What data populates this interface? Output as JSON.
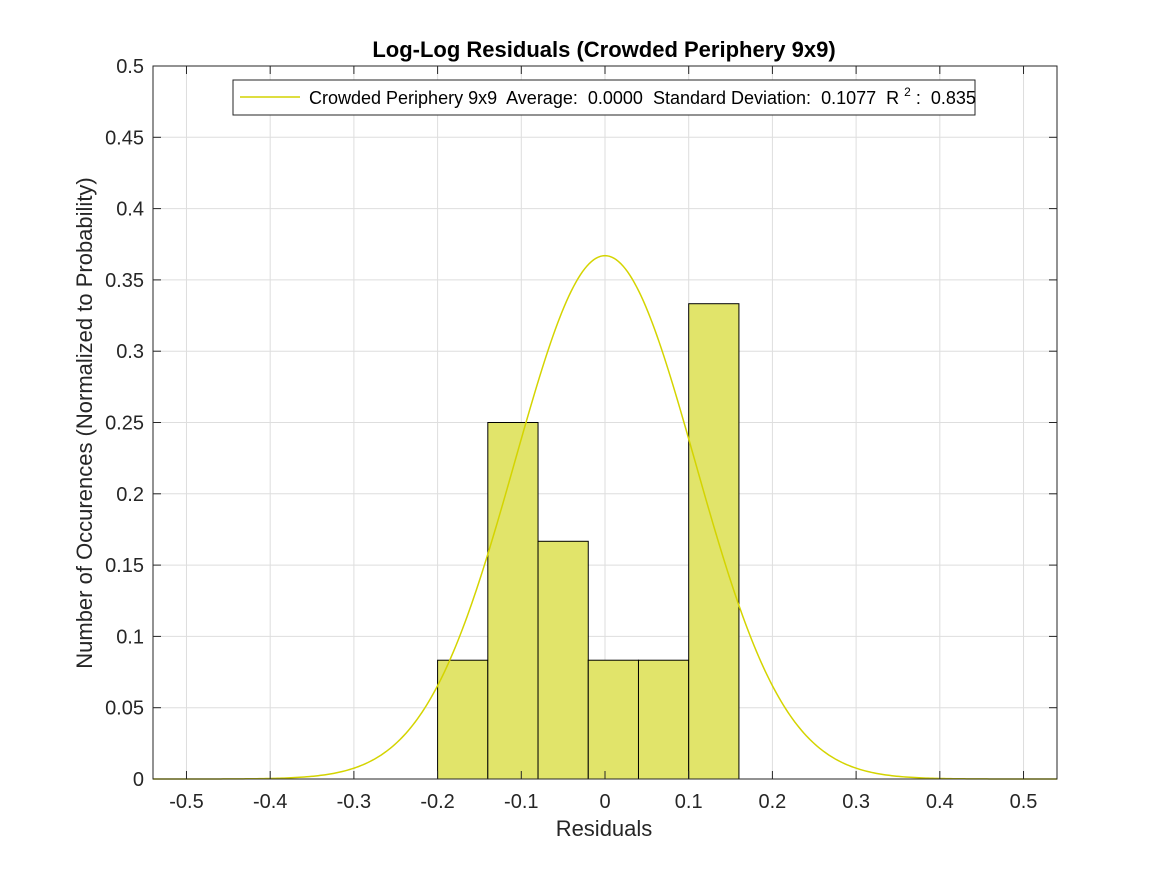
{
  "chart_data": {
    "type": "bar",
    "title": "Log-Log Residuals (Crowded Periphery 9x9)",
    "xlabel": "Residuals",
    "ylabel": "Number of Occurences (Normalized to Probability)",
    "xlim": [
      -0.54,
      0.54
    ],
    "ylim": [
      0,
      0.5
    ],
    "grid": true,
    "xticks": [
      -0.5,
      -0.4,
      -0.3,
      -0.2,
      -0.1,
      0,
      0.1,
      0.2,
      0.3,
      0.4,
      0.5
    ],
    "xtick_labels": [
      "-0.5",
      "-0.4",
      "-0.3",
      "-0.2",
      "-0.1",
      "0",
      "0.1",
      "0.2",
      "0.3",
      "0.4",
      "0.5"
    ],
    "yticks": [
      0,
      0.05,
      0.1,
      0.15,
      0.2,
      0.25,
      0.3,
      0.35,
      0.4,
      0.45,
      0.5
    ],
    "ytick_labels": [
      "0",
      "0.05",
      "0.1",
      "0.15",
      "0.2",
      "0.25",
      "0.3",
      "0.35",
      "0.4",
      "0.45",
      "0.5"
    ],
    "histogram": {
      "bin_edges": [
        -0.2,
        -0.14,
        -0.08,
        -0.02,
        0.04,
        0.1,
        0.16
      ],
      "values": [
        0.0833,
        0.25,
        0.1667,
        0.0833,
        0.0833,
        0.3333
      ],
      "color": "#e1e46a",
      "edge_color": "#000000"
    },
    "fit_curve": {
      "type": "normal_pdf",
      "mean": 0.0,
      "std": 0.1077,
      "peak": 0.367,
      "color": "#d4d400"
    },
    "legend": {
      "placement": "top",
      "series_name": "Crowded Periphery 9x9",
      "average_label": "Average:",
      "average_value": "0.0000",
      "std_label": "Standard Deviation:",
      "std_value": "0.1077",
      "r2_base": "R",
      "r2_exp": "2",
      "r2_value": "0.835"
    }
  }
}
